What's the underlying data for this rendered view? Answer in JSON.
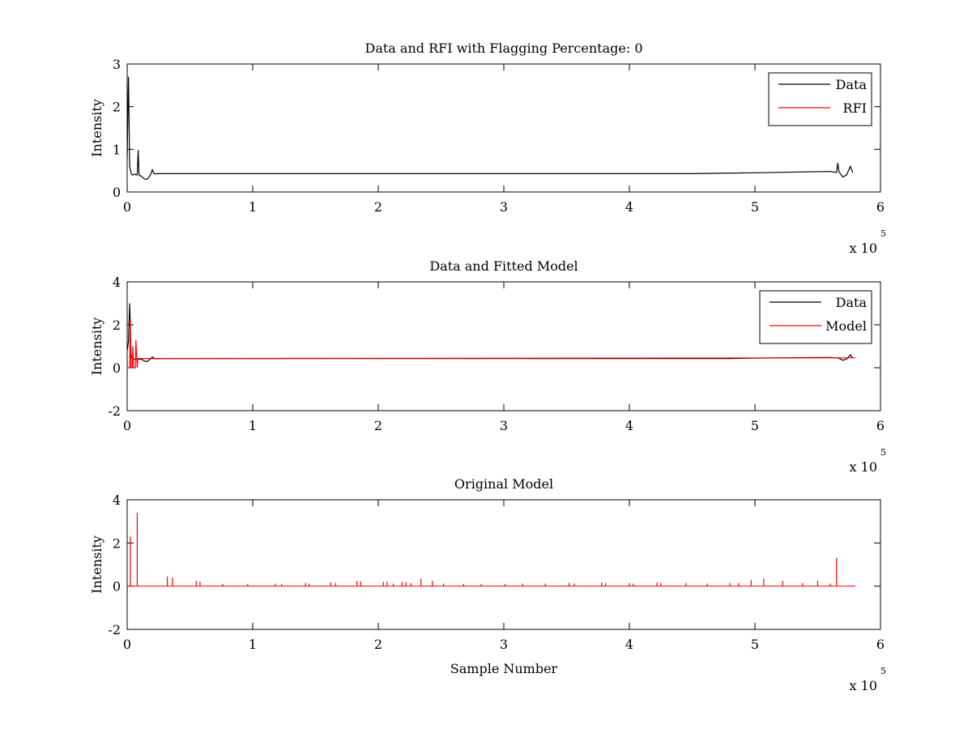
{
  "chart_data": [
    {
      "type": "line",
      "title": "Data and RFI with Flagging Percentage: 0",
      "xlabel": "",
      "ylabel": "Intensity",
      "xlim": [
        0,
        600000
      ],
      "ylim": [
        0,
        3
      ],
      "xticks": [
        0,
        1,
        2,
        3,
        4,
        5,
        6
      ],
      "yticks": [
        0,
        1,
        2,
        3
      ],
      "x_multiplier": "x 10",
      "x_multiplier_exp": "5",
      "legend": {
        "position": "top-right",
        "entries": [
          "Data",
          "RFI"
        ]
      },
      "grid": false,
      "series": [
        {
          "name": "Data",
          "color": "#000000",
          "x": [
            0,
            1000,
            2000,
            3000,
            4000,
            5000,
            6000,
            7000,
            8000,
            8800,
            9500,
            10000,
            11000,
            12000,
            14000,
            16000,
            17000,
            18000,
            19000,
            20000,
            21000,
            22000,
            24000,
            30000,
            100000,
            200000,
            300000,
            400000,
            450000,
            500000,
            520000,
            540000,
            560000,
            565000,
            566000,
            567000,
            570000,
            573000,
            576000,
            578000
          ],
          "y": [
            0.8,
            2.7,
            0.6,
            0.45,
            0.4,
            0.4,
            0.42,
            0.4,
            0.4,
            0.98,
            0.4,
            0.38,
            0.38,
            0.35,
            0.3,
            0.3,
            0.33,
            0.38,
            0.42,
            0.52,
            0.45,
            0.42,
            0.43,
            0.43,
            0.43,
            0.43,
            0.43,
            0.43,
            0.43,
            0.45,
            0.46,
            0.47,
            0.48,
            0.46,
            0.68,
            0.47,
            0.35,
            0.4,
            0.6,
            0.45
          ]
        },
        {
          "name": "RFI",
          "color": "#ff0000",
          "x": [],
          "y": []
        }
      ]
    },
    {
      "type": "line",
      "title": "Data and Fitted Model",
      "xlabel": "",
      "ylabel": "Intensity",
      "xlim": [
        0,
        600000
      ],
      "ylim": [
        -2,
        4
      ],
      "xticks": [
        0,
        1,
        2,
        3,
        4,
        5,
        6
      ],
      "yticks": [
        -2,
        0,
        2,
        4
      ],
      "x_multiplier": "x 10",
      "x_multiplier_exp": "5",
      "legend": {
        "position": "top-right",
        "entries": [
          "Data",
          "Model"
        ]
      },
      "grid": false,
      "series": [
        {
          "name": "Data",
          "color": "#000000",
          "x": [
            0,
            1000,
            2000,
            3000,
            4000,
            5000,
            6000,
            8000,
            10000,
            12000,
            14000,
            16000,
            18000,
            20000,
            22000,
            30000,
            100000,
            200000,
            300000,
            400000,
            480000,
            500000,
            540000,
            560000,
            566000,
            570000,
            573000,
            576000,
            578000
          ],
          "y": [
            0.8,
            1.2,
            3.0,
            0.6,
            0.45,
            0.42,
            0.4,
            0.4,
            0.4,
            0.38,
            0.3,
            0.3,
            0.38,
            0.5,
            0.42,
            0.43,
            0.43,
            0.43,
            0.43,
            0.43,
            0.43,
            0.45,
            0.47,
            0.48,
            0.46,
            0.35,
            0.4,
            0.6,
            0.45
          ]
        },
        {
          "name": "Model",
          "color": "#ff0000",
          "x": [
            0,
            2000,
            2500,
            3000,
            4000,
            4500,
            5000,
            6000,
            6500,
            7000,
            8000,
            8500,
            9000,
            10000,
            580000
          ],
          "y": [
            0.0,
            0.0,
            2.3,
            0.0,
            0.0,
            1.0,
            0.0,
            0.0,
            0.0,
            1.3,
            0.0,
            0.43,
            0.43,
            0.43,
            0.46
          ]
        }
      ]
    },
    {
      "type": "line",
      "title": "Original Model",
      "xlabel": "Sample Number",
      "ylabel": "Intensity",
      "xlim": [
        0,
        600000
      ],
      "ylim": [
        -2,
        4
      ],
      "xticks": [
        0,
        1,
        2,
        3,
        4,
        5,
        6
      ],
      "yticks": [
        -2,
        0,
        2,
        4
      ],
      "x_multiplier": "x 10",
      "x_multiplier_exp": "5",
      "grid": false,
      "series": [
        {
          "color": "#ff0000",
          "baseline": 0,
          "x_end": 580000,
          "spikes": [
            [
              2500,
              2.3
            ],
            [
              8000,
              3.4
            ],
            [
              32000,
              0.45
            ],
            [
              36000,
              0.4
            ],
            [
              55000,
              0.25
            ],
            [
              58000,
              0.2
            ],
            [
              76000,
              0.1
            ],
            [
              96000,
              0.1
            ],
            [
              118000,
              0.12
            ],
            [
              123000,
              0.1
            ],
            [
              142000,
              0.15
            ],
            [
              145000,
              0.12
            ],
            [
              162000,
              0.18
            ],
            [
              166000,
              0.15
            ],
            [
              183000,
              0.25
            ],
            [
              186000,
              0.22
            ],
            [
              204000,
              0.2
            ],
            [
              207000,
              0.2
            ],
            [
              212000,
              0.12
            ],
            [
              219000,
              0.2
            ],
            [
              222000,
              0.18
            ],
            [
              226000,
              0.15
            ],
            [
              234000,
              0.35
            ],
            [
              243000,
              0.25
            ],
            [
              252000,
              0.12
            ],
            [
              268000,
              0.1
            ],
            [
              282000,
              0.1
            ],
            [
              301000,
              0.1
            ],
            [
              315000,
              0.12
            ],
            [
              333000,
              0.12
            ],
            [
              352000,
              0.15
            ],
            [
              356000,
              0.12
            ],
            [
              378000,
              0.18
            ],
            [
              381000,
              0.15
            ],
            [
              400000,
              0.15
            ],
            [
              403000,
              0.12
            ],
            [
              422000,
              0.18
            ],
            [
              425000,
              0.15
            ],
            [
              445000,
              0.15
            ],
            [
              462000,
              0.12
            ],
            [
              480000,
              0.15
            ],
            [
              487000,
              0.15
            ],
            [
              497000,
              0.28
            ],
            [
              507000,
              0.35
            ],
            [
              522000,
              0.25
            ],
            [
              538000,
              0.15
            ],
            [
              550000,
              0.25
            ],
            [
              560000,
              0.12
            ],
            [
              565000,
              1.3
            ]
          ]
        }
      ]
    }
  ]
}
